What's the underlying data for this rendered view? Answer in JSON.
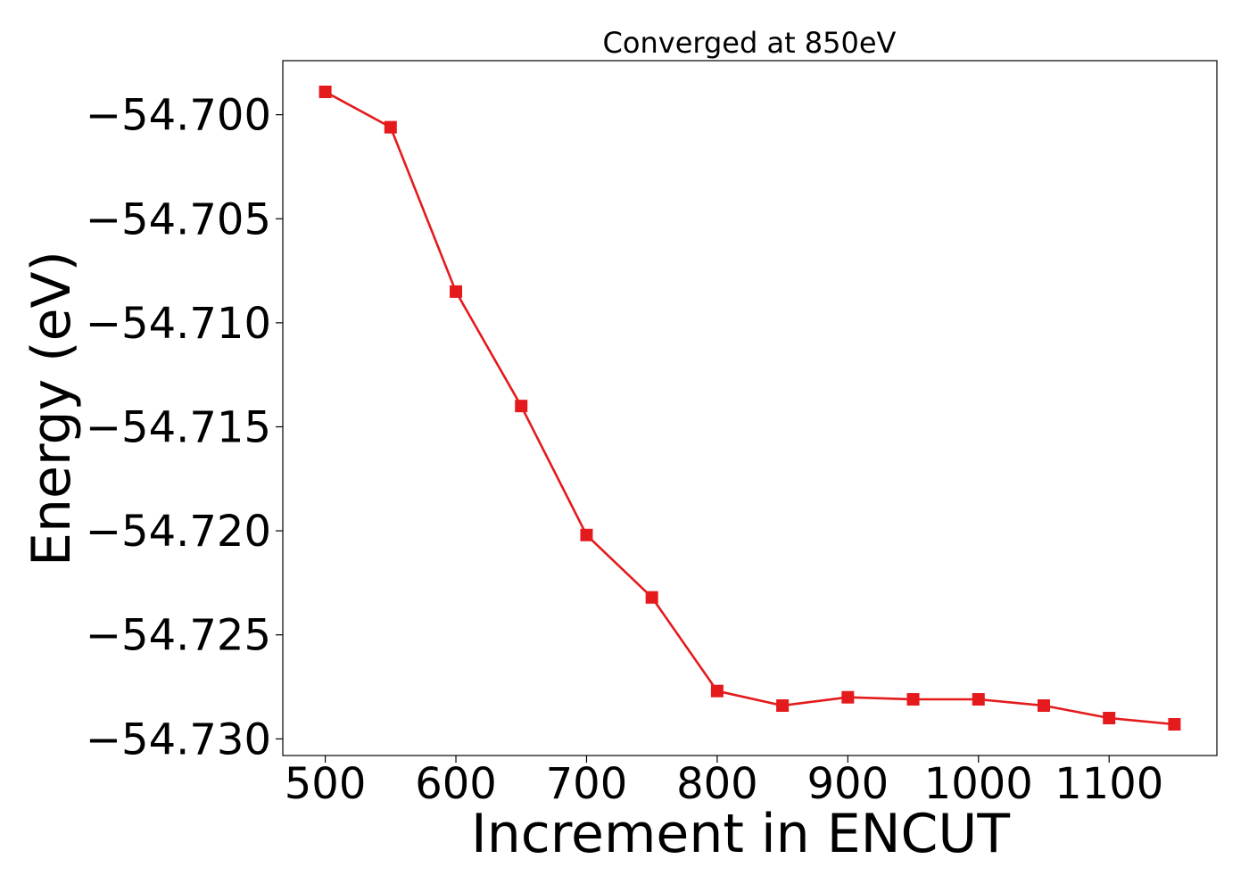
{
  "chart_data": {
    "type": "line",
    "title": "Converged at 850eV",
    "xlabel": "Increment in ENCUT",
    "ylabel": "Energy (eV)",
    "x": [
      500,
      550,
      600,
      650,
      700,
      750,
      800,
      850,
      900,
      950,
      1000,
      1050,
      1100,
      1150
    ],
    "series": [
      {
        "values": [
          -54.6989,
          -54.7006,
          -54.7085,
          -54.714,
          -54.7202,
          -54.7232,
          -54.7277,
          -54.7284,
          -54.728,
          -54.7281,
          -54.7281,
          -54.7284,
          -54.729,
          -54.7293
        ],
        "color": "#e41a1c",
        "marker": "square"
      }
    ],
    "xlim": [
      467.5,
      1182.5
    ],
    "ylim": [
      -54.7308,
      -54.6974
    ],
    "xticks": [
      500,
      600,
      700,
      800,
      900,
      1000,
      1100
    ],
    "xtick_labels": [
      "500",
      "600",
      "700",
      "800",
      "900",
      "1000",
      "1100"
    ],
    "yticks": [
      -54.7,
      -54.705,
      -54.71,
      -54.715,
      -54.72,
      -54.725,
      -54.73
    ],
    "ytick_labels": [
      "−54.700",
      "−54.705",
      "−54.710",
      "−54.715",
      "−54.720",
      "−54.725",
      "−54.730"
    ],
    "grid": false,
    "legend": "none"
  }
}
